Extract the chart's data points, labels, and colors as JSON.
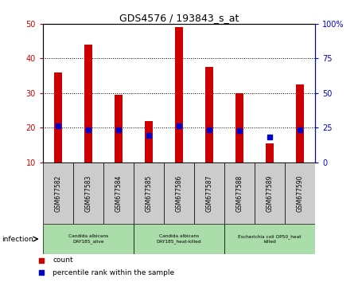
{
  "title": "GDS4576 / 193843_s_at",
  "samples": [
    "GSM677582",
    "GSM677583",
    "GSM677584",
    "GSM677585",
    "GSM677586",
    "GSM677587",
    "GSM677588",
    "GSM677589",
    "GSM677590"
  ],
  "counts": [
    36,
    44,
    29.5,
    22,
    49,
    37.5,
    30,
    15.5,
    32.5
  ],
  "percentile_ranks": [
    26,
    23.5,
    23.5,
    19.5,
    26,
    23.5,
    23,
    18,
    23.5
  ],
  "ylim_left": [
    10,
    50
  ],
  "ylim_right": [
    0,
    100
  ],
  "yticks_left": [
    10,
    20,
    30,
    40,
    50
  ],
  "yticks_right": [
    0,
    25,
    50,
    75,
    100
  ],
  "ytick_right_labels": [
    "0",
    "25",
    "50",
    "75",
    "100%"
  ],
  "bar_bottom": 10,
  "bar_color": "#CC0000",
  "percentile_color": "#0000CC",
  "bg_color": "#FFFFFF",
  "groups": [
    {
      "label": "Candida albicans\nDAY185_alive",
      "start": 0,
      "end": 3,
      "color": "#AADDAA"
    },
    {
      "label": "Candida albicans\nDAY185_heat-killed",
      "start": 3,
      "end": 6,
      "color": "#AADDAA"
    },
    {
      "label": "Escherichia coli OP50_heat\nkilled",
      "start": 6,
      "end": 9,
      "color": "#AADDAA"
    }
  ],
  "infection_label": "infection",
  "legend_count": "count",
  "legend_percentile": "percentile rank within the sample",
  "left_axis_color": "#CC0000",
  "right_axis_color": "#0000CC",
  "sample_bg_color": "#CCCCCC"
}
